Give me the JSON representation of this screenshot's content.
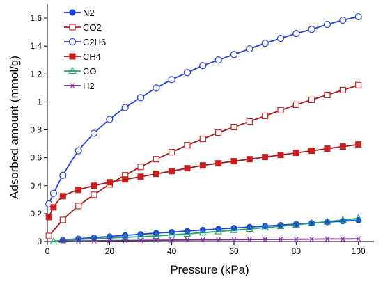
{
  "chart_data": {
    "type": "scatter",
    "xlabel": "Pressure (kPa)",
    "ylabel": "Adsorbed amount (mmol/g)",
    "xlim": [
      0,
      105
    ],
    "ylim": [
      0,
      1.7
    ],
    "xticks": [
      0,
      20,
      40,
      60,
      80,
      100
    ],
    "yticks": [
      0,
      0.2,
      0.4,
      0.6,
      0.8,
      1.0,
      1.2,
      1.4,
      1.6
    ],
    "xtick_labels": [
      "0",
      "20",
      "40",
      "60",
      "80",
      "100"
    ],
    "ytick_labels": [
      "0",
      "0.2",
      "0.4",
      "0.6",
      "0.8",
      "1",
      "1.2",
      "1.4",
      "1.6"
    ],
    "grid": false,
    "legend_position": "top-left",
    "series": [
      {
        "name": "N2",
        "color": "#1f3fe0",
        "marker": "circle-filled",
        "line_color": "#1f3fe0",
        "x": [
          5,
          10,
          15,
          20,
          25,
          30,
          35,
          40,
          45,
          50,
          55,
          60,
          65,
          70,
          75,
          80,
          85,
          90,
          95,
          100
        ],
        "y": [
          0.01,
          0.02,
          0.028,
          0.036,
          0.044,
          0.052,
          0.06,
          0.067,
          0.075,
          0.083,
          0.09,
          0.097,
          0.104,
          0.111,
          0.118,
          0.125,
          0.132,
          0.139,
          0.146,
          0.153
        ]
      },
      {
        "name": "CO2",
        "color": "#cc2222",
        "marker": "square-open",
        "line_color": "#a01818",
        "x": [
          0.5,
          5,
          10,
          15,
          20,
          25,
          30,
          35,
          40,
          45,
          50,
          55,
          60,
          65,
          70,
          75,
          80,
          85,
          90,
          95,
          100
        ],
        "y": [
          0.04,
          0.155,
          0.255,
          0.335,
          0.41,
          0.475,
          0.535,
          0.59,
          0.64,
          0.69,
          0.735,
          0.78,
          0.82,
          0.86,
          0.9,
          0.94,
          0.98,
          1.015,
          1.05,
          1.085,
          1.12
        ]
      },
      {
        "name": "C2H6",
        "color": "#1f3fe0",
        "marker": "circle-open",
        "line_color": "#1f3fe0",
        "x": [
          0.5,
          2,
          5,
          10,
          15,
          20,
          25,
          30,
          35,
          40,
          45,
          50,
          55,
          60,
          65,
          70,
          75,
          80,
          85,
          90,
          95,
          100
        ],
        "y": [
          0.27,
          0.345,
          0.475,
          0.65,
          0.775,
          0.875,
          0.96,
          1.03,
          1.1,
          1.16,
          1.21,
          1.26,
          1.3,
          1.34,
          1.38,
          1.42,
          1.455,
          1.49,
          1.52,
          1.555,
          1.585,
          1.61
        ]
      },
      {
        "name": "CH4",
        "color": "#c81e1e",
        "marker": "square-filled",
        "line_color": "#a01818",
        "x": [
          0.5,
          2,
          5,
          10,
          15,
          20,
          25,
          30,
          35,
          40,
          45,
          50,
          55,
          60,
          65,
          70,
          75,
          80,
          85,
          90,
          95,
          100
        ],
        "y": [
          0.175,
          0.245,
          0.325,
          0.37,
          0.4,
          0.425,
          0.445,
          0.465,
          0.485,
          0.505,
          0.525,
          0.545,
          0.56,
          0.575,
          0.59,
          0.605,
          0.62,
          0.635,
          0.65,
          0.665,
          0.68,
          0.695
        ]
      },
      {
        "name": "CO",
        "color": "#1aa86a",
        "marker": "triangle-open",
        "line_color": "#1aa86a",
        "x": [
          2,
          5,
          10,
          15,
          20,
          25,
          30,
          35,
          40,
          45,
          50,
          55,
          60,
          65,
          70,
          75,
          80,
          85,
          90,
          95,
          100
        ],
        "y": [
          0.0,
          0.01,
          0.015,
          0.02,
          0.025,
          0.03,
          0.035,
          0.04,
          0.048,
          0.055,
          0.063,
          0.072,
          0.081,
          0.09,
          0.1,
          0.11,
          0.12,
          0.131,
          0.142,
          0.154,
          0.166
        ]
      },
      {
        "name": "H2",
        "color": "#7a2a9a",
        "marker": "asterisk",
        "line_color": "#7a2a9a",
        "x": [
          5,
          10,
          15,
          20,
          25,
          30,
          35,
          40,
          45,
          50,
          55,
          60,
          65,
          70,
          75,
          80,
          85,
          90,
          95,
          100
        ],
        "y": [
          0.003,
          0.004,
          0.005,
          0.006,
          0.007,
          0.008,
          0.009,
          0.01,
          0.011,
          0.012,
          0.012,
          0.013,
          0.014,
          0.015,
          0.015,
          0.016,
          0.017,
          0.018,
          0.018,
          0.019
        ]
      }
    ]
  }
}
